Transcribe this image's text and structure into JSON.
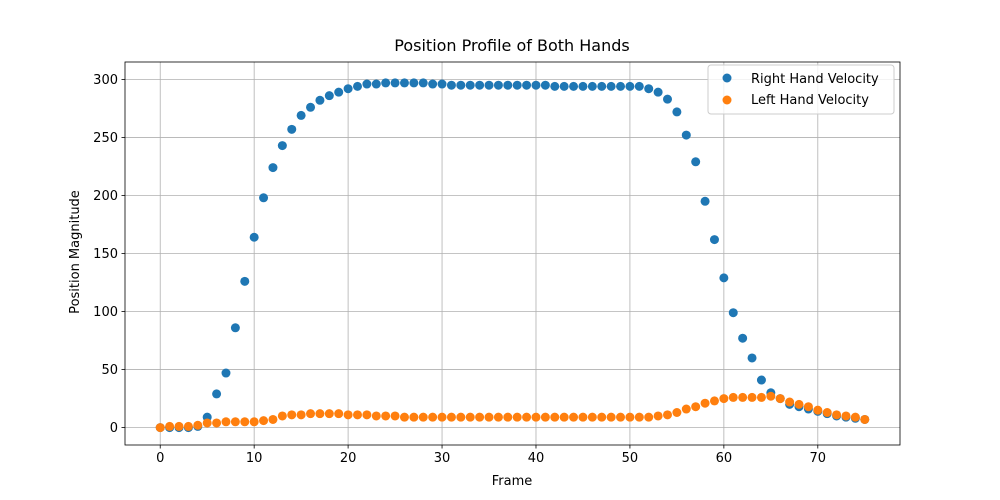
{
  "chart_data": {
    "type": "scatter",
    "title": "Position Profile of Both Hands",
    "xlabel": "Frame",
    "ylabel": "Position Magnitude",
    "xlim": [
      -3.75,
      78.75
    ],
    "ylim": [
      -15,
      315
    ],
    "xticks": [
      0,
      10,
      20,
      30,
      40,
      50,
      60,
      70
    ],
    "yticks": [
      0,
      50,
      100,
      150,
      200,
      250,
      300
    ],
    "grid": true,
    "legend_position": "top-right",
    "series": [
      {
        "name": "Right Hand Velocity",
        "color": "#1f77b4",
        "x": [
          0,
          1,
          2,
          3,
          4,
          5,
          6,
          7,
          8,
          9,
          10,
          11,
          12,
          13,
          14,
          15,
          16,
          17,
          18,
          19,
          20,
          21,
          22,
          23,
          24,
          25,
          26,
          27,
          28,
          29,
          30,
          31,
          32,
          33,
          34,
          35,
          36,
          37,
          38,
          39,
          40,
          41,
          42,
          43,
          44,
          45,
          46,
          47,
          48,
          49,
          50,
          51,
          52,
          53,
          54,
          55,
          56,
          57,
          58,
          59,
          60,
          61,
          62,
          63,
          64,
          65,
          66,
          67,
          68,
          69,
          70,
          71,
          72,
          73,
          74,
          75
        ],
        "y": [
          0,
          0,
          0,
          0,
          1,
          9,
          29,
          47,
          86,
          126,
          164,
          198,
          224,
          243,
          257,
          269,
          276,
          282,
          286,
          289,
          292,
          294,
          296,
          296,
          297,
          297,
          297,
          297,
          297,
          296,
          296,
          295,
          295,
          295,
          295,
          295,
          295,
          295,
          295,
          295,
          295,
          295,
          294,
          294,
          294,
          294,
          294,
          294,
          294,
          294,
          294,
          294,
          292,
          289,
          283,
          272,
          252,
          229,
          195,
          162,
          129,
          99,
          77,
          60,
          41,
          30,
          25,
          20,
          18,
          16,
          14,
          12,
          10,
          9,
          8,
          7
        ]
      },
      {
        "name": "Left Hand Velocity",
        "color": "#ff7f0e",
        "x": [
          0,
          1,
          2,
          3,
          4,
          5,
          6,
          7,
          8,
          9,
          10,
          11,
          12,
          13,
          14,
          15,
          16,
          17,
          18,
          19,
          20,
          21,
          22,
          23,
          24,
          25,
          26,
          27,
          28,
          29,
          30,
          31,
          32,
          33,
          34,
          35,
          36,
          37,
          38,
          39,
          40,
          41,
          42,
          43,
          44,
          45,
          46,
          47,
          48,
          49,
          50,
          51,
          52,
          53,
          54,
          55,
          56,
          57,
          58,
          59,
          60,
          61,
          62,
          63,
          64,
          65,
          66,
          67,
          68,
          69,
          70,
          71,
          72,
          73,
          74,
          75
        ],
        "y": [
          0,
          1,
          1,
          1,
          2,
          4,
          4,
          5,
          5,
          5,
          5,
          6,
          7,
          10,
          11,
          11,
          12,
          12,
          12,
          12,
          11,
          11,
          11,
          10,
          10,
          10,
          9,
          9,
          9,
          9,
          9,
          9,
          9,
          9,
          9,
          9,
          9,
          9,
          9,
          9,
          9,
          9,
          9,
          9,
          9,
          9,
          9,
          9,
          9,
          9,
          9,
          9,
          9,
          10,
          11,
          13,
          16,
          18,
          21,
          23,
          25,
          26,
          26,
          26,
          26,
          27,
          25,
          22,
          20,
          18,
          15,
          13,
          11,
          10,
          9,
          7
        ]
      }
    ]
  }
}
